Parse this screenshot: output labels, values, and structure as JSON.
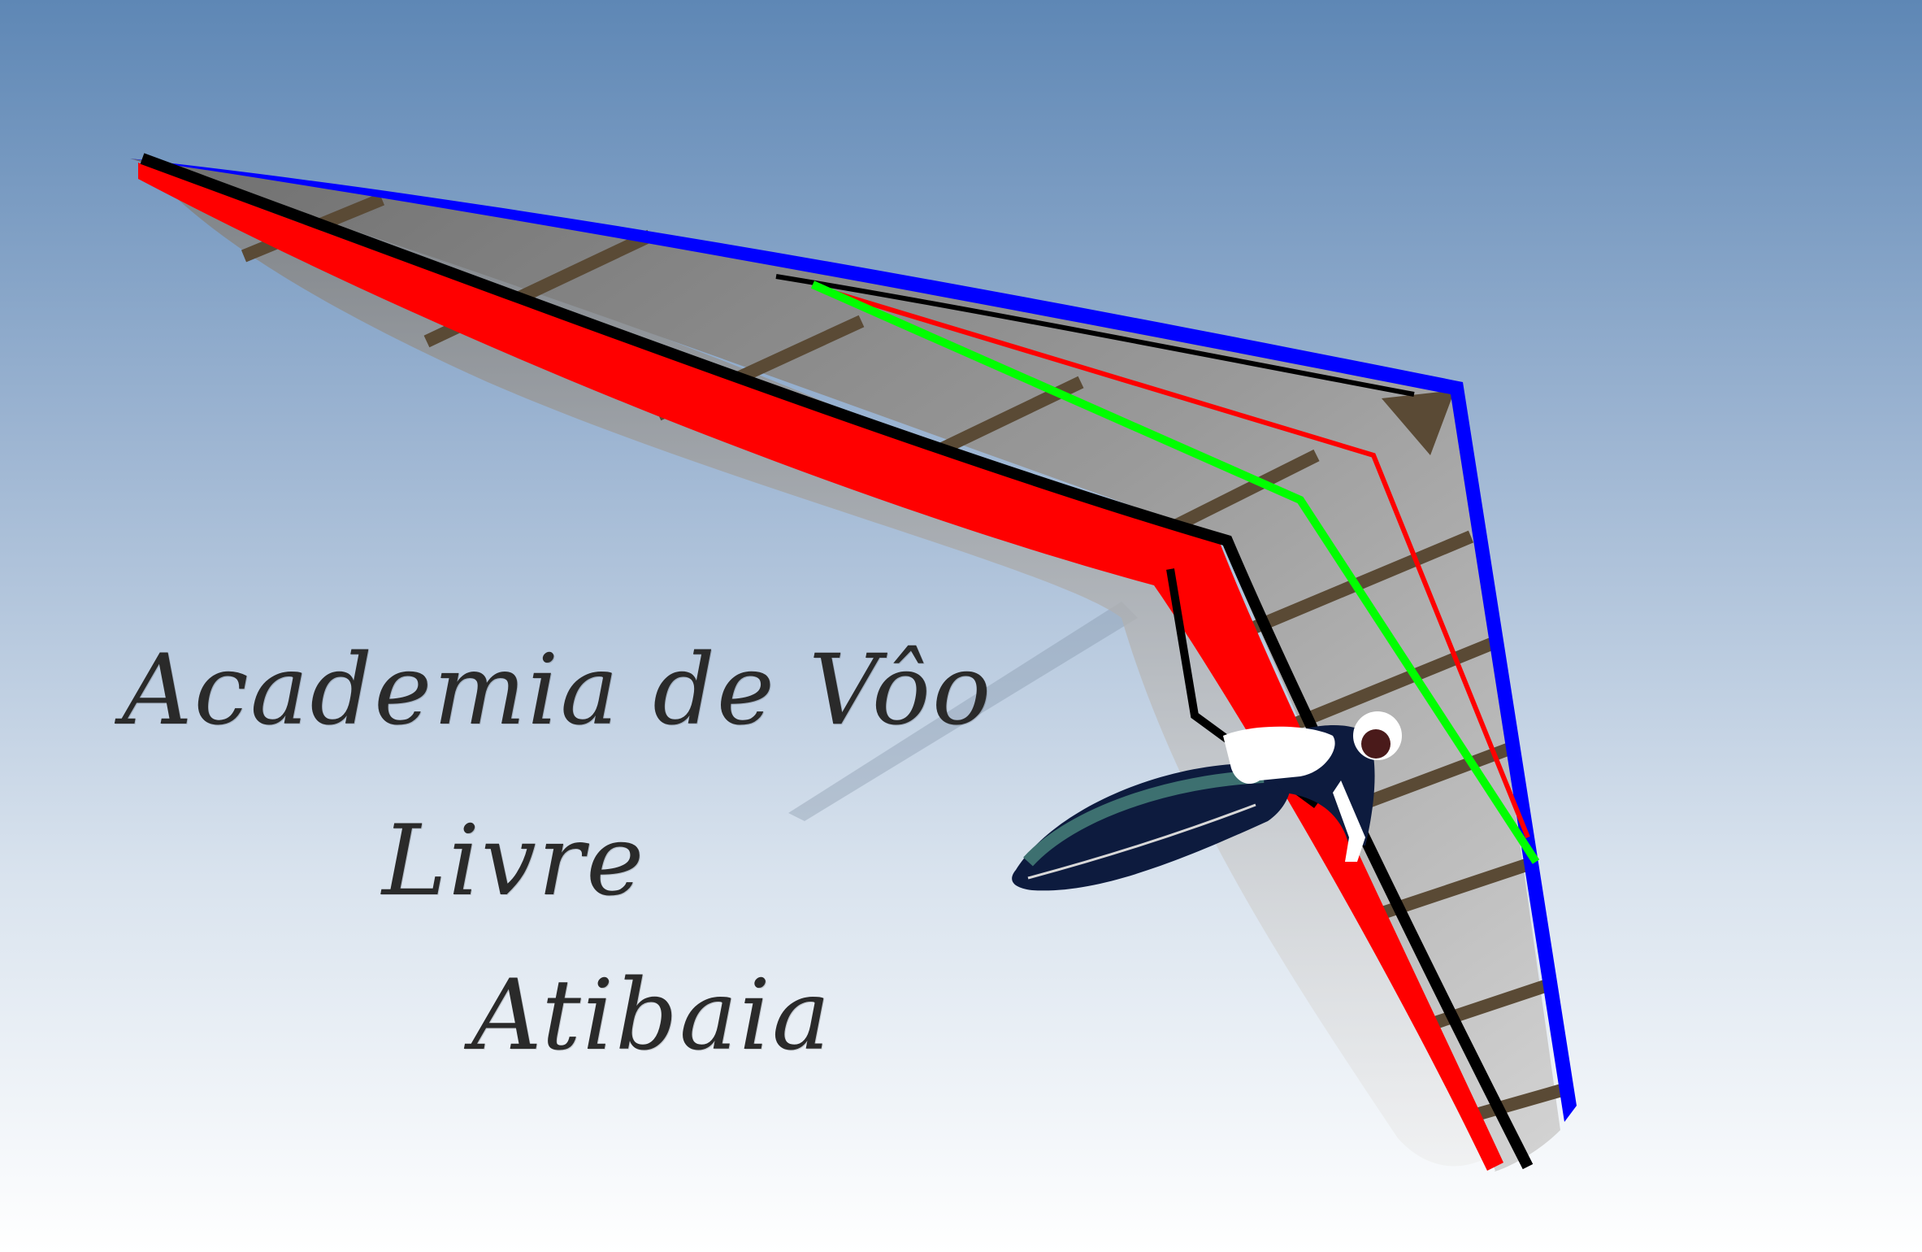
{
  "logo": {
    "title_lines": [
      "Academia de Vôo",
      "Livre",
      "Atibaia"
    ],
    "graphic": "hang-glider-with-pilot-icon"
  },
  "colors": {
    "sky_top": "#5f88b6",
    "sky_mid": "#a9bfd8",
    "sky_bottom": "#ffffff",
    "sail_gray": "#8a8a8a",
    "sail_light": "#c8c8c8",
    "batten_brown": "#5a4a35",
    "leading_edge_red": "#ff0000",
    "trailing_edge_blue": "#0000ff",
    "keel_green": "#00ff00",
    "frame_black": "#000000",
    "harness_navy": "#0d1b3e",
    "harness_teal": "#3d7070",
    "pilot_white": "#ffffff",
    "text_dark": "#2a2a2a"
  }
}
